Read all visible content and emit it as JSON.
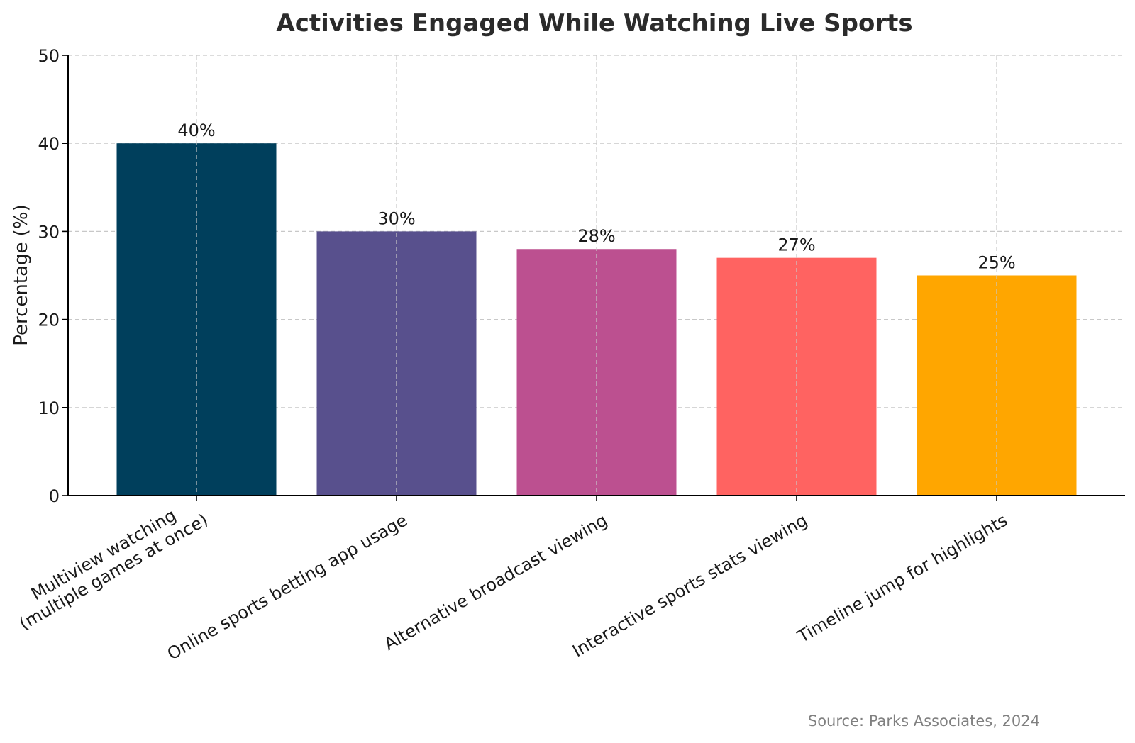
{
  "chart_data": {
    "type": "bar",
    "title": "Activities Engaged While Watching Live Sports",
    "xlabel": "",
    "ylabel": "Percentage (%)",
    "ylim": [
      0,
      50
    ],
    "yticks": [
      0,
      10,
      20,
      30,
      40,
      50
    ],
    "grid": true,
    "categories": [
      [
        "Multiview watching",
        "(multiple games at once)"
      ],
      [
        "Online sports betting app usage"
      ],
      [
        "Alternative broadcast viewing"
      ],
      [
        "Interactive sports stats viewing"
      ],
      [
        "Timeline jump for highlights"
      ]
    ],
    "values": [
      40,
      30,
      28,
      27,
      25
    ],
    "data_labels": [
      "40%",
      "30%",
      "28%",
      "27%",
      "25%"
    ],
    "colors": [
      "#003f5c",
      "#58508d",
      "#bc5090",
      "#ff6361",
      "#ffa600"
    ],
    "source": "Source: Parks Associates, 2024"
  }
}
